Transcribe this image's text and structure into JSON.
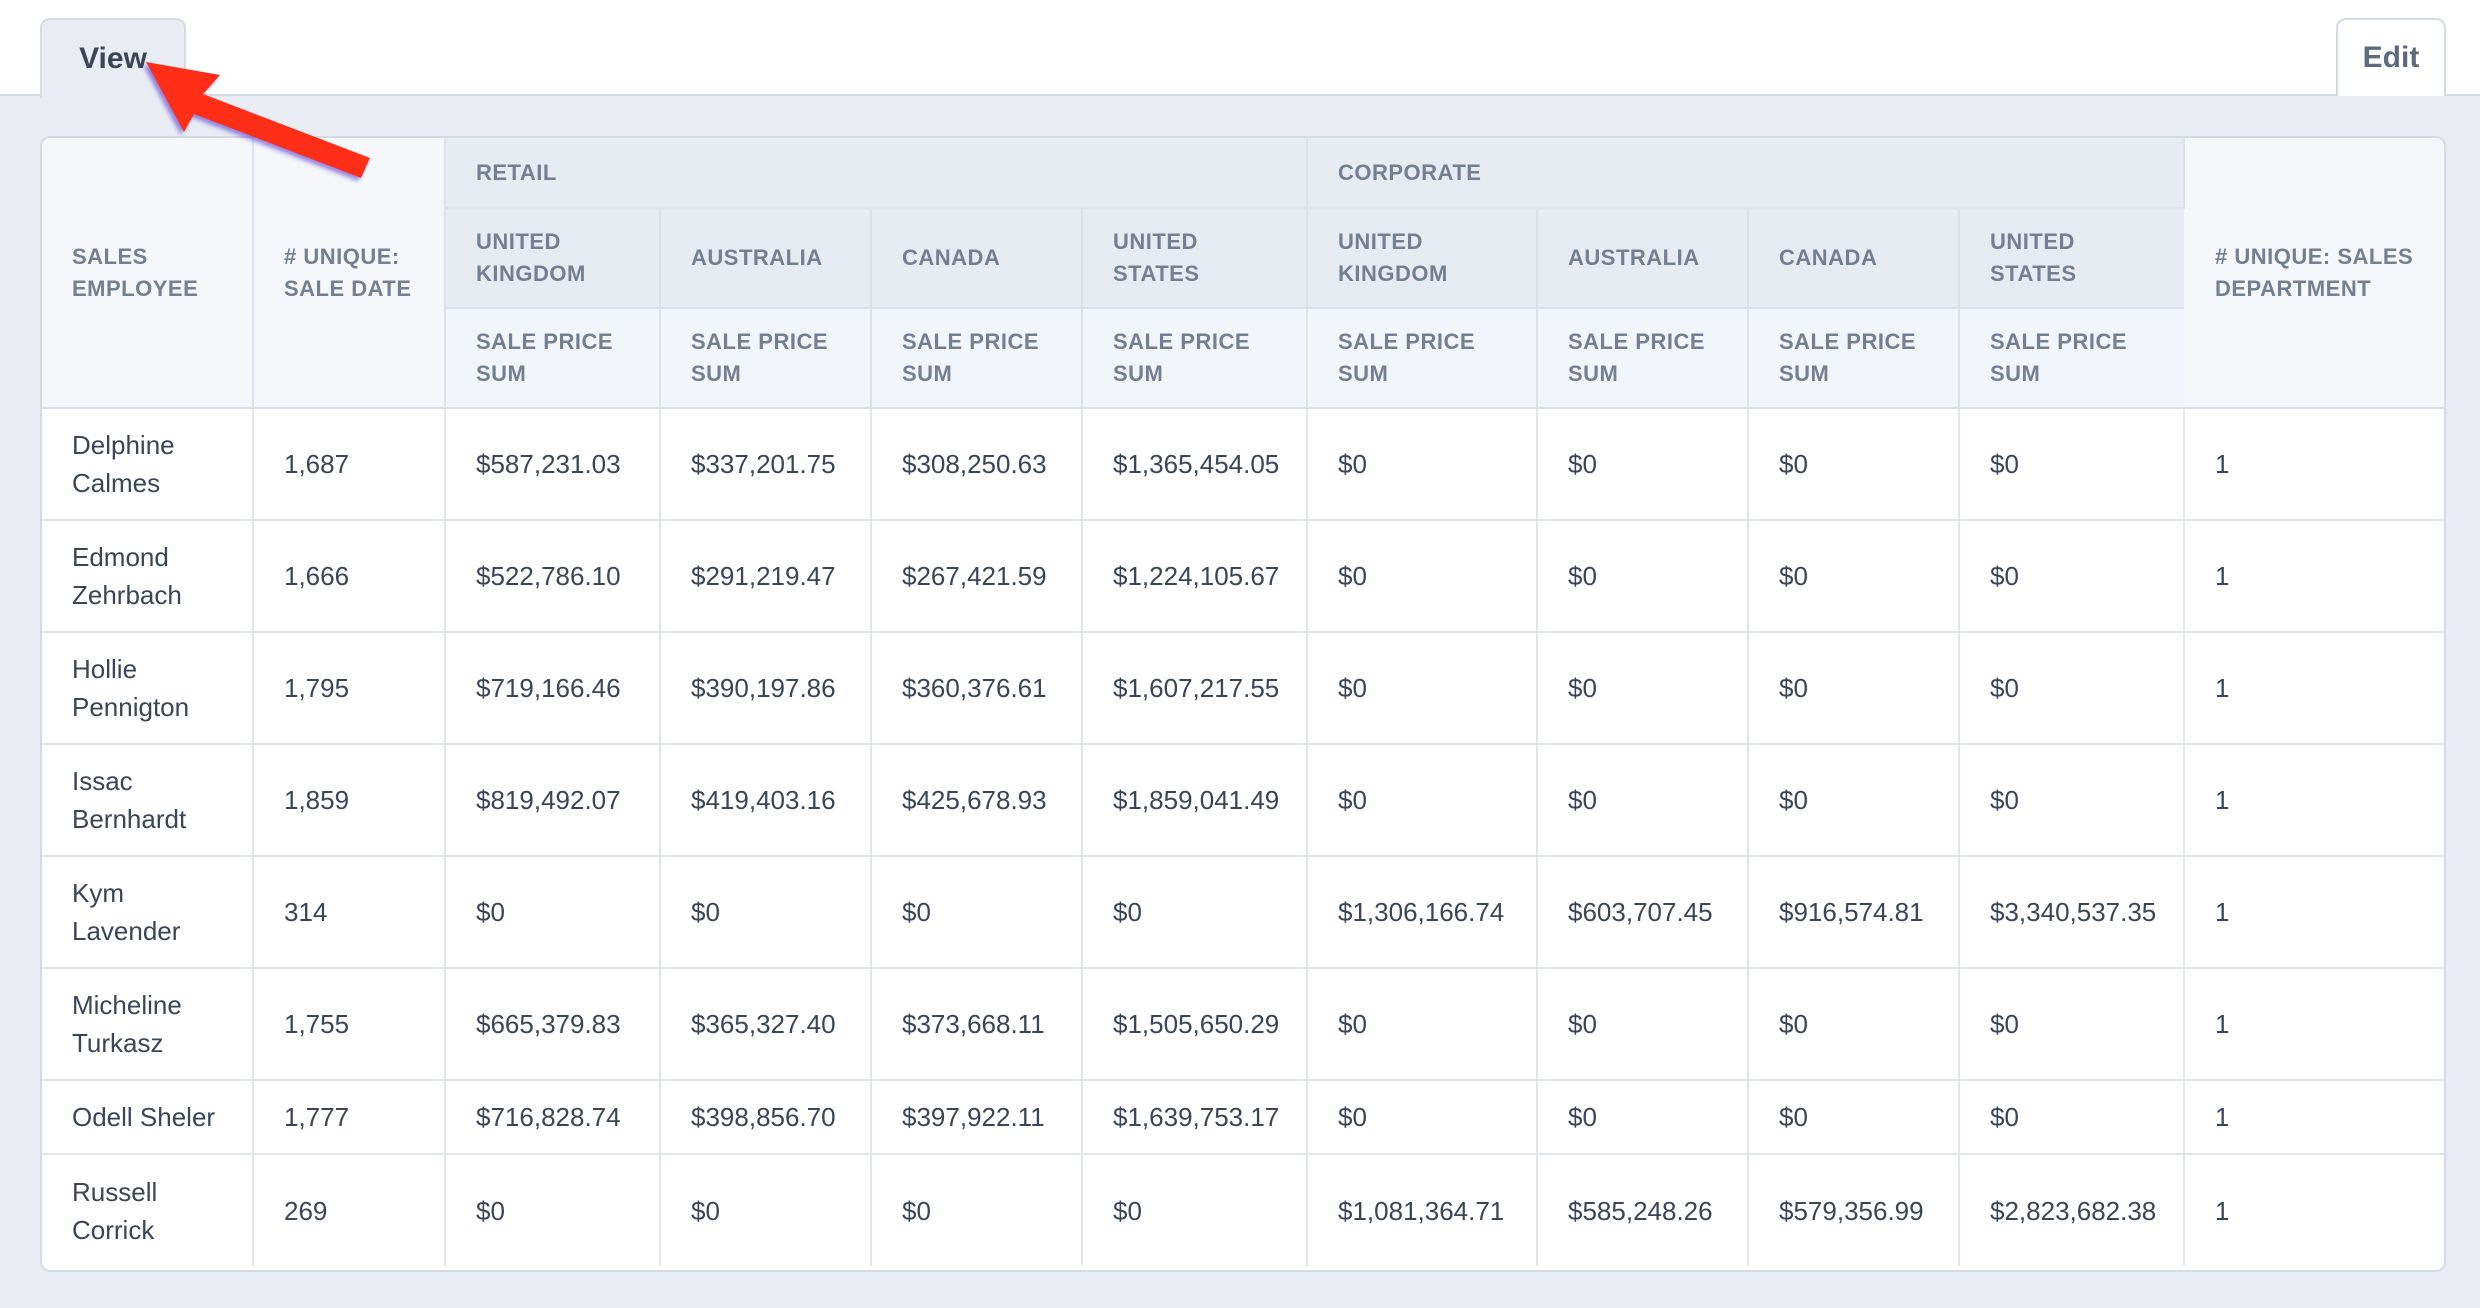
{
  "tabs": {
    "view": "View",
    "edit": "Edit"
  },
  "table": {
    "header": {
      "sales_employee": "SALES EMPLOYEE",
      "unique_sale_date": "# UNIQUE: SALE DATE",
      "unique_sales_department": "# UNIQUE: SALES DEPARTMENT",
      "groups": [
        "RETAIL",
        "CORPORATE"
      ],
      "countries": [
        "UNITED KINGDOM",
        "AUSTRALIA",
        "CANADA",
        "UNITED STATES",
        "UNITED KINGDOM",
        "AUSTRALIA",
        "CANADA",
        "UNITED STATES"
      ],
      "metric": "SALE PRICE SUM"
    },
    "rows": [
      [
        "Delphine Calmes",
        "1,687",
        "$587,231.03",
        "$337,201.75",
        "$308,250.63",
        "$1,365,454.05",
        "$0",
        "$0",
        "$0",
        "$0",
        "1"
      ],
      [
        "Edmond Zehrbach",
        "1,666",
        "$522,786.10",
        "$291,219.47",
        "$267,421.59",
        "$1,224,105.67",
        "$0",
        "$0",
        "$0",
        "$0",
        "1"
      ],
      [
        "Hollie Pennigton",
        "1,795",
        "$719,166.46",
        "$390,197.86",
        "$360,376.61",
        "$1,607,217.55",
        "$0",
        "$0",
        "$0",
        "$0",
        "1"
      ],
      [
        "Issac Bernhardt",
        "1,859",
        "$819,492.07",
        "$419,403.16",
        "$425,678.93",
        "$1,859,041.49",
        "$0",
        "$0",
        "$0",
        "$0",
        "1"
      ],
      [
        "Kym Lavender",
        "314",
        "$0",
        "$0",
        "$0",
        "$0",
        "$1,306,166.74",
        "$603,707.45",
        "$916,574.81",
        "$3,340,537.35",
        "1"
      ],
      [
        "Micheline Turkasz",
        "1,755",
        "$665,379.83",
        "$365,327.40",
        "$373,668.11",
        "$1,505,650.29",
        "$0",
        "$0",
        "$0",
        "$0",
        "1"
      ],
      [
        "Odell Sheler",
        "1,777",
        "$716,828.74",
        "$398,856.70",
        "$397,922.11",
        "$1,639,753.17",
        "$0",
        "$0",
        "$0",
        "$0",
        "1"
      ],
      [
        "Russell Corrick",
        "269",
        "$0",
        "$0",
        "$0",
        "$0",
        "$1,081,364.71",
        "$585,248.26",
        "$579,356.99",
        "$2,823,682.38",
        "1"
      ]
    ]
  },
  "colors": {
    "arrow": "#ff2d18",
    "background": "#e9edf3",
    "header_group": "#e7ecf3"
  }
}
